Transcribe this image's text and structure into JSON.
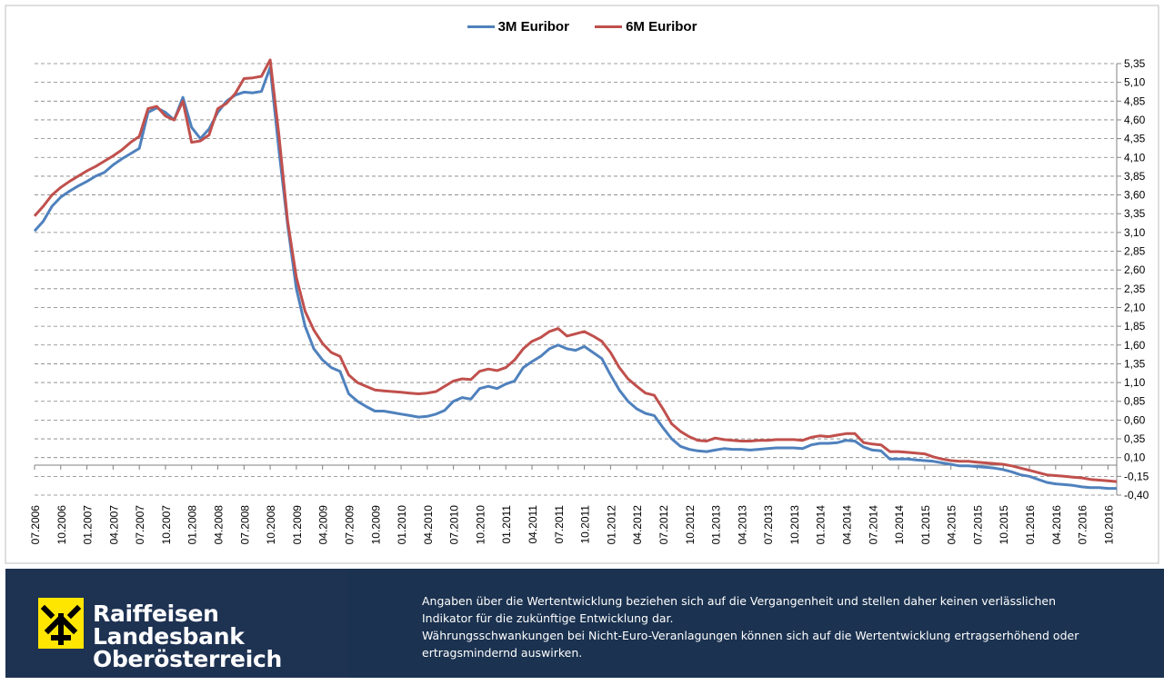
{
  "legend": [
    {
      "name": "3M Euribor",
      "color": "#4f81bd"
    },
    {
      "name": "6M Euribor",
      "color": "#c0504d"
    }
  ],
  "chart_data": {
    "type": "line",
    "title": "",
    "xlabel": "",
    "ylabel": "",
    "ylim": [
      -0.4,
      5.35
    ],
    "yticks": [
      "5,35",
      "5,10",
      "4,85",
      "4,60",
      "4,35",
      "4,10",
      "3,85",
      "3,60",
      "3,35",
      "3,10",
      "2,85",
      "2,60",
      "2,35",
      "2,10",
      "1,85",
      "1,60",
      "1,35",
      "1,10",
      "0,85",
      "0,60",
      "0,35",
      "0,10",
      "-0,15",
      "-0,40"
    ],
    "xticks": [
      "07.2006",
      "10.2006",
      "01.2007",
      "04.2007",
      "07.2007",
      "10.2007",
      "01.2008",
      "04.2008",
      "07.2008",
      "10.2008",
      "01.2009",
      "04.2009",
      "07.2009",
      "10.2009",
      "01.2010",
      "04.2010",
      "07.2010",
      "10.2010",
      "01.2011",
      "04.2011",
      "07.2011",
      "10.2011",
      "01.2012",
      "04.2012",
      "07.2012",
      "10.2012",
      "01.2013",
      "04.2013",
      "07.2013",
      "10.2013",
      "01.2014",
      "04.2014",
      "07.2014",
      "10.2014",
      "01.2015",
      "04.2015",
      "07.2015",
      "10.2015",
      "01.2016",
      "04.2016",
      "07.2016",
      "10.2016"
    ],
    "x_range": [
      "2006-07",
      "2016-11"
    ],
    "grid": true,
    "legend_position": "top-center",
    "y_axis_position": "right",
    "series": [
      {
        "name": "3M Euribor",
        "color": "#4f81bd",
        "x": [
          "2006-07",
          "2006-08",
          "2006-09",
          "2006-10",
          "2006-11",
          "2006-12",
          "2007-01",
          "2007-02",
          "2007-03",
          "2007-04",
          "2007-05",
          "2007-06",
          "2007-07",
          "2007-08",
          "2007-09",
          "2007-10",
          "2007-11",
          "2007-12",
          "2008-01",
          "2008-02",
          "2008-03",
          "2008-04",
          "2008-05",
          "2008-06",
          "2008-07",
          "2008-08",
          "2008-09",
          "2008-10",
          "2008-11",
          "2008-12",
          "2009-01",
          "2009-02",
          "2009-03",
          "2009-04",
          "2009-05",
          "2009-06",
          "2009-07",
          "2009-08",
          "2009-09",
          "2009-10",
          "2009-11",
          "2009-12",
          "2010-01",
          "2010-02",
          "2010-03",
          "2010-04",
          "2010-05",
          "2010-06",
          "2010-07",
          "2010-08",
          "2010-09",
          "2010-10",
          "2010-11",
          "2010-12",
          "2011-01",
          "2011-02",
          "2011-03",
          "2011-04",
          "2011-05",
          "2011-06",
          "2011-07",
          "2011-08",
          "2011-09",
          "2011-10",
          "2011-11",
          "2011-12",
          "2012-01",
          "2012-02",
          "2012-03",
          "2012-04",
          "2012-05",
          "2012-06",
          "2012-07",
          "2012-08",
          "2012-09",
          "2012-10",
          "2012-11",
          "2012-12",
          "2013-01",
          "2013-02",
          "2013-03",
          "2013-04",
          "2013-05",
          "2013-06",
          "2013-07",
          "2013-08",
          "2013-09",
          "2013-10",
          "2013-11",
          "2013-12",
          "2014-01",
          "2014-02",
          "2014-03",
          "2014-04",
          "2014-05",
          "2014-06",
          "2014-07",
          "2014-08",
          "2014-09",
          "2014-10",
          "2014-11",
          "2014-12",
          "2015-01",
          "2015-02",
          "2015-03",
          "2015-04",
          "2015-05",
          "2015-06",
          "2015-07",
          "2015-08",
          "2015-09",
          "2015-10",
          "2015-11",
          "2015-12",
          "2016-01",
          "2016-02",
          "2016-03",
          "2016-04",
          "2016-05",
          "2016-06",
          "2016-07",
          "2016-08",
          "2016-09",
          "2016-10",
          "2016-11"
        ],
        "values": [
          3.12,
          3.25,
          3.45,
          3.57,
          3.65,
          3.72,
          3.78,
          3.85,
          3.9,
          4.0,
          4.08,
          4.15,
          4.22,
          4.7,
          4.76,
          4.7,
          4.6,
          4.9,
          4.5,
          4.35,
          4.48,
          4.7,
          4.85,
          4.93,
          4.97,
          4.96,
          4.98,
          5.3,
          4.2,
          3.2,
          2.35,
          1.85,
          1.55,
          1.4,
          1.3,
          1.25,
          0.95,
          0.85,
          0.78,
          0.72,
          0.72,
          0.7,
          0.68,
          0.66,
          0.64,
          0.65,
          0.68,
          0.73,
          0.85,
          0.9,
          0.88,
          1.02,
          1.05,
          1.02,
          1.08,
          1.12,
          1.3,
          1.38,
          1.45,
          1.55,
          1.6,
          1.55,
          1.53,
          1.58,
          1.5,
          1.42,
          1.2,
          1.0,
          0.85,
          0.75,
          0.69,
          0.66,
          0.5,
          0.35,
          0.25,
          0.21,
          0.19,
          0.18,
          0.2,
          0.22,
          0.21,
          0.21,
          0.2,
          0.21,
          0.22,
          0.23,
          0.23,
          0.23,
          0.22,
          0.27,
          0.29,
          0.29,
          0.3,
          0.33,
          0.32,
          0.24,
          0.2,
          0.19,
          0.08,
          0.08,
          0.08,
          0.07,
          0.06,
          0.05,
          0.03,
          0.01,
          -0.01,
          -0.01,
          -0.02,
          -0.03,
          -0.04,
          -0.06,
          -0.09,
          -0.13,
          -0.15,
          -0.19,
          -0.23,
          -0.25,
          -0.26,
          -0.27,
          -0.29,
          -0.3,
          -0.3,
          -0.31,
          -0.31
        ]
      },
      {
        "name": "6M Euribor",
        "color": "#c0504d",
        "x": [
          "2006-07",
          "2006-08",
          "2006-09",
          "2006-10",
          "2006-11",
          "2006-12",
          "2007-01",
          "2007-02",
          "2007-03",
          "2007-04",
          "2007-05",
          "2007-06",
          "2007-07",
          "2007-08",
          "2007-09",
          "2007-10",
          "2007-11",
          "2007-12",
          "2008-01",
          "2008-02",
          "2008-03",
          "2008-04",
          "2008-05",
          "2008-06",
          "2008-07",
          "2008-08",
          "2008-09",
          "2008-10",
          "2008-11",
          "2008-12",
          "2009-01",
          "2009-02",
          "2009-03",
          "2009-04",
          "2009-05",
          "2009-06",
          "2009-07",
          "2009-08",
          "2009-09",
          "2009-10",
          "2009-11",
          "2009-12",
          "2010-01",
          "2010-02",
          "2010-03",
          "2010-04",
          "2010-05",
          "2010-06",
          "2010-07",
          "2010-08",
          "2010-09",
          "2010-10",
          "2010-11",
          "2010-12",
          "2011-01",
          "2011-02",
          "2011-03",
          "2011-04",
          "2011-05",
          "2011-06",
          "2011-07",
          "2011-08",
          "2011-09",
          "2011-10",
          "2011-11",
          "2011-12",
          "2012-01",
          "2012-02",
          "2012-03",
          "2012-04",
          "2012-05",
          "2012-06",
          "2012-07",
          "2012-08",
          "2012-09",
          "2012-10",
          "2012-11",
          "2012-12",
          "2013-01",
          "2013-02",
          "2013-03",
          "2013-04",
          "2013-05",
          "2013-06",
          "2013-07",
          "2013-08",
          "2013-09",
          "2013-10",
          "2013-11",
          "2013-12",
          "2014-01",
          "2014-02",
          "2014-03",
          "2014-04",
          "2014-05",
          "2014-06",
          "2014-07",
          "2014-08",
          "2014-09",
          "2014-10",
          "2014-11",
          "2014-12",
          "2015-01",
          "2015-02",
          "2015-03",
          "2015-04",
          "2015-05",
          "2015-06",
          "2015-07",
          "2015-08",
          "2015-09",
          "2015-10",
          "2015-11",
          "2015-12",
          "2016-01",
          "2016-02",
          "2016-03",
          "2016-04",
          "2016-05",
          "2016-06",
          "2016-07",
          "2016-08",
          "2016-09",
          "2016-10",
          "2016-11"
        ],
        "values": [
          3.32,
          3.45,
          3.6,
          3.7,
          3.78,
          3.85,
          3.92,
          3.98,
          4.05,
          4.12,
          4.2,
          4.3,
          4.38,
          4.75,
          4.78,
          4.65,
          4.6,
          4.85,
          4.3,
          4.32,
          4.4,
          4.75,
          4.82,
          4.95,
          5.15,
          5.16,
          5.18,
          5.4,
          4.4,
          3.25,
          2.5,
          2.05,
          1.8,
          1.62,
          1.5,
          1.45,
          1.2,
          1.1,
          1.05,
          1.0,
          0.99,
          0.98,
          0.97,
          0.96,
          0.95,
          0.96,
          0.98,
          1.05,
          1.12,
          1.15,
          1.14,
          1.25,
          1.28,
          1.26,
          1.3,
          1.4,
          1.55,
          1.65,
          1.7,
          1.78,
          1.82,
          1.72,
          1.75,
          1.78,
          1.72,
          1.65,
          1.5,
          1.3,
          1.15,
          1.05,
          0.96,
          0.93,
          0.75,
          0.55,
          0.45,
          0.38,
          0.33,
          0.32,
          0.36,
          0.34,
          0.33,
          0.32,
          0.32,
          0.33,
          0.33,
          0.34,
          0.34,
          0.34,
          0.33,
          0.37,
          0.39,
          0.38,
          0.4,
          0.42,
          0.42,
          0.3,
          0.28,
          0.27,
          0.18,
          0.18,
          0.17,
          0.16,
          0.15,
          0.11,
          0.08,
          0.06,
          0.05,
          0.05,
          0.04,
          0.03,
          0.02,
          0.01,
          -0.01,
          -0.04,
          -0.07,
          -0.1,
          -0.13,
          -0.14,
          -0.15,
          -0.16,
          -0.17,
          -0.19,
          -0.2,
          -0.21,
          -0.22
        ]
      }
    ]
  },
  "footer": {
    "brand_line1": "Raiffeisen Landesbank",
    "brand_line2": "Oberösterreich",
    "disclaimer_line1": "Angaben über die Wertentwicklung beziehen sich auf die Vergangenheit und stellen daher keinen verlässlichen",
    "disclaimer_line2": "Indikator für die zukünftige Entwicklung dar.",
    "disclaimer_line3": "Währungsschwankungen bei Nicht-Euro-Veranlagungen können sich auf die Wertentwicklung ertragserhöhend oder",
    "disclaimer_line4": "ertragsmindernd auswirken."
  }
}
